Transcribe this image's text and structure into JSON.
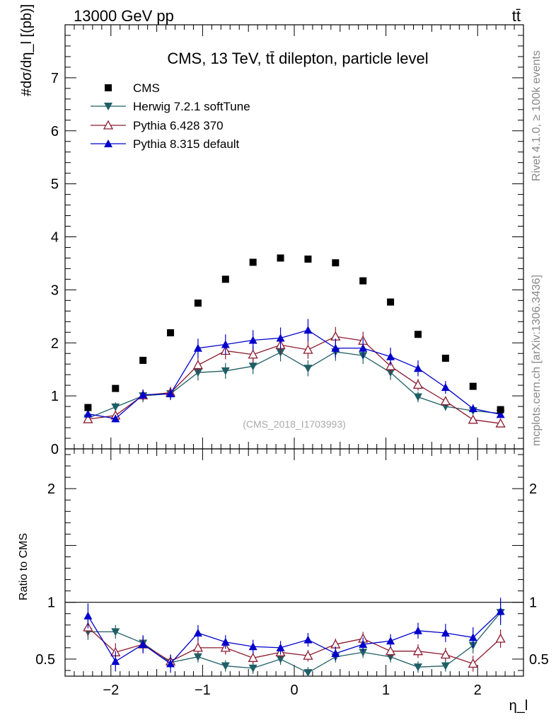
{
  "header": {
    "energy_label": "13000 GeV pp",
    "process_label": "tt̄"
  },
  "side_text": {
    "rivet": "Rivet 4.1.0, ≥ 100k events",
    "mcplots": "mcplots.cern.ch [arXiv:1306.3436]"
  },
  "colors": {
    "cms": "#000000",
    "herwig": "#1f5f66",
    "pythia6": "#8b1a2e",
    "pythia8": "#0000cc"
  },
  "chart_data": [
    {
      "type": "scatter",
      "panel": "main",
      "title": "CMS, 13 TeV, tt̄ dilepton, particle level",
      "watermark": "(CMS_2018_I1703993)",
      "ylabel": "#dσ/dη_l [(pb)]",
      "xlim": [
        -2.5,
        2.5
      ],
      "ylim": [
        0,
        8
      ],
      "y_ticks": [
        0,
        1,
        2,
        3,
        4,
        5,
        6,
        7
      ],
      "y_tick_labels": [
        "0",
        "1",
        "2",
        "3",
        "4",
        "5",
        "6",
        "7"
      ],
      "x": [
        -2.25,
        -1.95,
        -1.65,
        -1.35,
        -1.05,
        -0.75,
        -0.45,
        -0.15,
        0.15,
        0.45,
        0.75,
        1.05,
        1.35,
        1.65,
        1.95,
        2.25
      ],
      "series": [
        {
          "key": "cms",
          "name": "CMS",
          "marker": "square",
          "line": false,
          "values": [
            0.78,
            1.14,
            1.67,
            2.19,
            2.75,
            3.2,
            3.52,
            3.6,
            3.58,
            3.51,
            3.17,
            2.77,
            2.16,
            1.71,
            1.18,
            0.74
          ],
          "errors": [
            0.02,
            0.02,
            0.03,
            0.03,
            0.04,
            0.04,
            0.04,
            0.04,
            0.04,
            0.04,
            0.04,
            0.04,
            0.03,
            0.03,
            0.02,
            0.02
          ]
        },
        {
          "key": "herwig",
          "name": "Herwig 7.2.1 softTune",
          "marker": "triangle-down",
          "line": true,
          "values": [
            0.58,
            0.79,
            1.0,
            1.04,
            1.44,
            1.47,
            1.56,
            1.82,
            1.52,
            1.83,
            1.76,
            1.44,
            0.98,
            0.8,
            0.72,
            0.67
          ],
          "errors": [
            0.06,
            0.09,
            0.12,
            0.12,
            0.15,
            0.15,
            0.15,
            0.17,
            0.15,
            0.17,
            0.16,
            0.14,
            0.1,
            0.08,
            0.07,
            0.06
          ]
        },
        {
          "key": "pythia6",
          "name": "Pythia 6.428 370",
          "marker": "triangle-open",
          "line": true,
          "values": [
            0.56,
            0.63,
            1.01,
            1.06,
            1.58,
            1.85,
            1.78,
            1.96,
            1.87,
            2.12,
            2.04,
            1.56,
            1.21,
            0.9,
            0.55,
            0.48
          ],
          "errors": [
            0.06,
            0.07,
            0.1,
            0.11,
            0.15,
            0.16,
            0.16,
            0.17,
            0.17,
            0.18,
            0.17,
            0.14,
            0.11,
            0.09,
            0.06,
            0.05
          ]
        },
        {
          "key": "pythia8",
          "name": "Pythia 8.315 default",
          "marker": "triangle-up",
          "line": true,
          "values": [
            0.66,
            0.57,
            1.02,
            1.04,
            1.9,
            1.97,
            2.05,
            2.09,
            2.24,
            1.9,
            1.9,
            1.74,
            1.52,
            1.16,
            0.76,
            0.65
          ],
          "errors": [
            0.07,
            0.07,
            0.1,
            0.11,
            0.18,
            0.19,
            0.19,
            0.2,
            0.21,
            0.18,
            0.18,
            0.17,
            0.15,
            0.12,
            0.08,
            0.07
          ]
        }
      ]
    },
    {
      "type": "scatter",
      "panel": "ratio",
      "ylabel": "Ratio to CMS",
      "xlabel": "η_l",
      "xlim": [
        -2.5,
        2.5
      ],
      "ylim": [
        0.35,
        2.35
      ],
      "x_ticks": [
        -2,
        -1,
        0,
        1,
        2
      ],
      "x_tick_labels": [
        "−2",
        "−1",
        "0",
        "1",
        "2"
      ],
      "y_ticks": [
        0.5,
        1,
        2
      ],
      "y_tick_labels": [
        "0.5",
        "1",
        "2"
      ],
      "reference_line": 1,
      "x": [
        -2.25,
        -1.95,
        -1.65,
        -1.35,
        -1.05,
        -0.75,
        -0.45,
        -0.15,
        0.15,
        0.45,
        0.75,
        1.05,
        1.35,
        1.65,
        1.95,
        2.25
      ],
      "series": [
        {
          "key": "herwig",
          "name": "Herwig 7.2.1 softTune",
          "values": [
            0.74,
            0.74,
            0.64,
            0.47,
            0.52,
            0.44,
            0.42,
            0.5,
            0.38,
            0.52,
            0.56,
            0.52,
            0.43,
            0.44,
            0.62,
            0.91
          ],
          "errors": [
            0.07,
            0.06,
            0.06,
            0.05,
            0.05,
            0.05,
            0.05,
            0.05,
            0.05,
            0.05,
            0.05,
            0.05,
            0.05,
            0.05,
            0.07,
            0.08
          ]
        },
        {
          "key": "pythia6",
          "name": "Pythia 6.428 370",
          "values": [
            0.78,
            0.56,
            0.63,
            0.48,
            0.6,
            0.6,
            0.51,
            0.56,
            0.53,
            0.63,
            0.68,
            0.57,
            0.57,
            0.54,
            0.46,
            0.68
          ],
          "errors": [
            0.08,
            0.08,
            0.07,
            0.06,
            0.06,
            0.06,
            0.05,
            0.05,
            0.05,
            0.05,
            0.06,
            0.06,
            0.06,
            0.06,
            0.07,
            0.08
          ]
        },
        {
          "key": "pythia8",
          "name": "Pythia 8.315 default",
          "values": [
            0.88,
            0.48,
            0.63,
            0.46,
            0.73,
            0.65,
            0.61,
            0.6,
            0.67,
            0.55,
            0.63,
            0.66,
            0.75,
            0.73,
            0.69,
            0.92
          ],
          "errors": [
            0.11,
            0.09,
            0.08,
            0.08,
            0.07,
            0.06,
            0.06,
            0.06,
            0.06,
            0.06,
            0.06,
            0.06,
            0.07,
            0.08,
            0.09,
            0.12
          ]
        }
      ]
    }
  ]
}
